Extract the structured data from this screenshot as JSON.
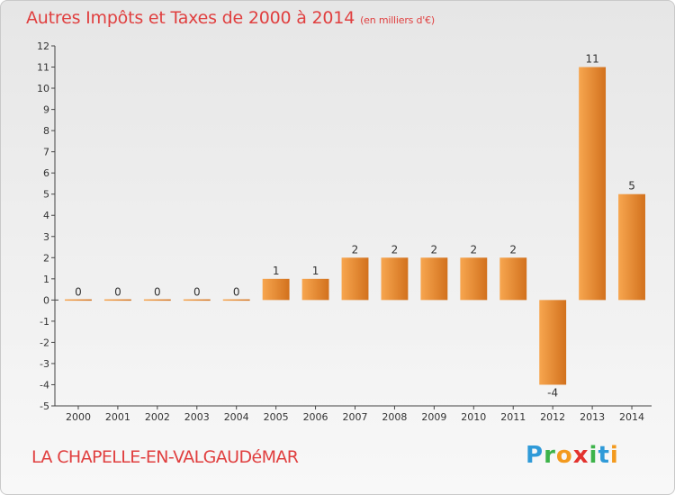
{
  "title": "Autres Impôts et Taxes de 2000 à 2014",
  "unit_label": "(en milliers d'€)",
  "commune": "LA CHAPELLE-EN-VALGAUDéMAR",
  "logo": "Proxiti",
  "colors": {
    "title": "#e03f3f",
    "bar_light": "#f7a64f",
    "bar_dark": "#d2711d",
    "axis": "#444444"
  },
  "chart_data": {
    "type": "bar",
    "categories": [
      "2000",
      "2001",
      "2002",
      "2003",
      "2004",
      "2005",
      "2006",
      "2007",
      "2008",
      "2009",
      "2010",
      "2011",
      "2012",
      "2013",
      "2014"
    ],
    "values": [
      0,
      0,
      0,
      0,
      0,
      1,
      1,
      2,
      2,
      2,
      2,
      2,
      -4,
      11,
      5
    ],
    "data_labels": [
      "0",
      "0",
      "0",
      "0",
      "0",
      "1",
      "1",
      "2",
      "2",
      "2",
      "2",
      "2",
      "-4",
      "11",
      "5"
    ],
    "y_ticks": [
      -5,
      -4,
      -3,
      -2,
      -1,
      0,
      1,
      2,
      3,
      4,
      5,
      6,
      7,
      8,
      9,
      10,
      11,
      12
    ],
    "ylim": [
      -5,
      12
    ],
    "grid": false,
    "legend": "none"
  }
}
